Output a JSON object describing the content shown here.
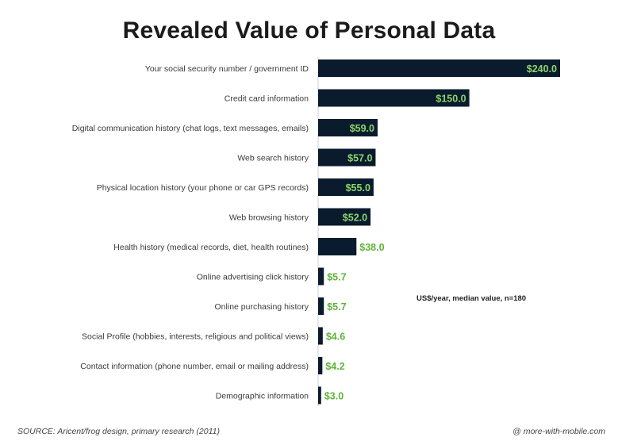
{
  "chart_data": {
    "type": "bar",
    "orientation": "horizontal",
    "title": "Revealed Value of Personal Data",
    "categories": [
      "Your social security number / government ID",
      "Credit card information",
      "Digital communication history (chat logs, text messages, emails)",
      "Web search history",
      "Physical location history (your phone or car GPS records)",
      "Web browsing history",
      "Health history (medical records, diet, health routines)",
      "Online advertising click history",
      "Online purchasing history",
      "Social Profile (hobbies, interests, religious and political views)",
      "Contact information (phone number, email or mailing address)",
      "Demographic information"
    ],
    "values": [
      240.0,
      150.0,
      59.0,
      57.0,
      55.0,
      52.0,
      38.0,
      5.7,
      5.7,
      4.6,
      4.2,
      3.0
    ],
    "value_labels": [
      "$240.0",
      "$150.0",
      "$59.0",
      "$57.0",
      "$55.0",
      "$52.0",
      "$38.0",
      "$5.7",
      "$5.7",
      "$4.6",
      "$4.2",
      "$3.0"
    ],
    "xlim": [
      0,
      240
    ],
    "grid": false,
    "legend": false,
    "annotation": "US$/year, median value, n=180",
    "colors": {
      "bar": "#0b1b2e",
      "label_inside": "#8cd66a",
      "label_outside": "#5fb43a",
      "axis_text": "#3a3a3a"
    }
  },
  "footer": {
    "source": "SOURCE: Aricent/frog design, primary research (2011)",
    "credit": "@ more-with-mobile.com"
  }
}
